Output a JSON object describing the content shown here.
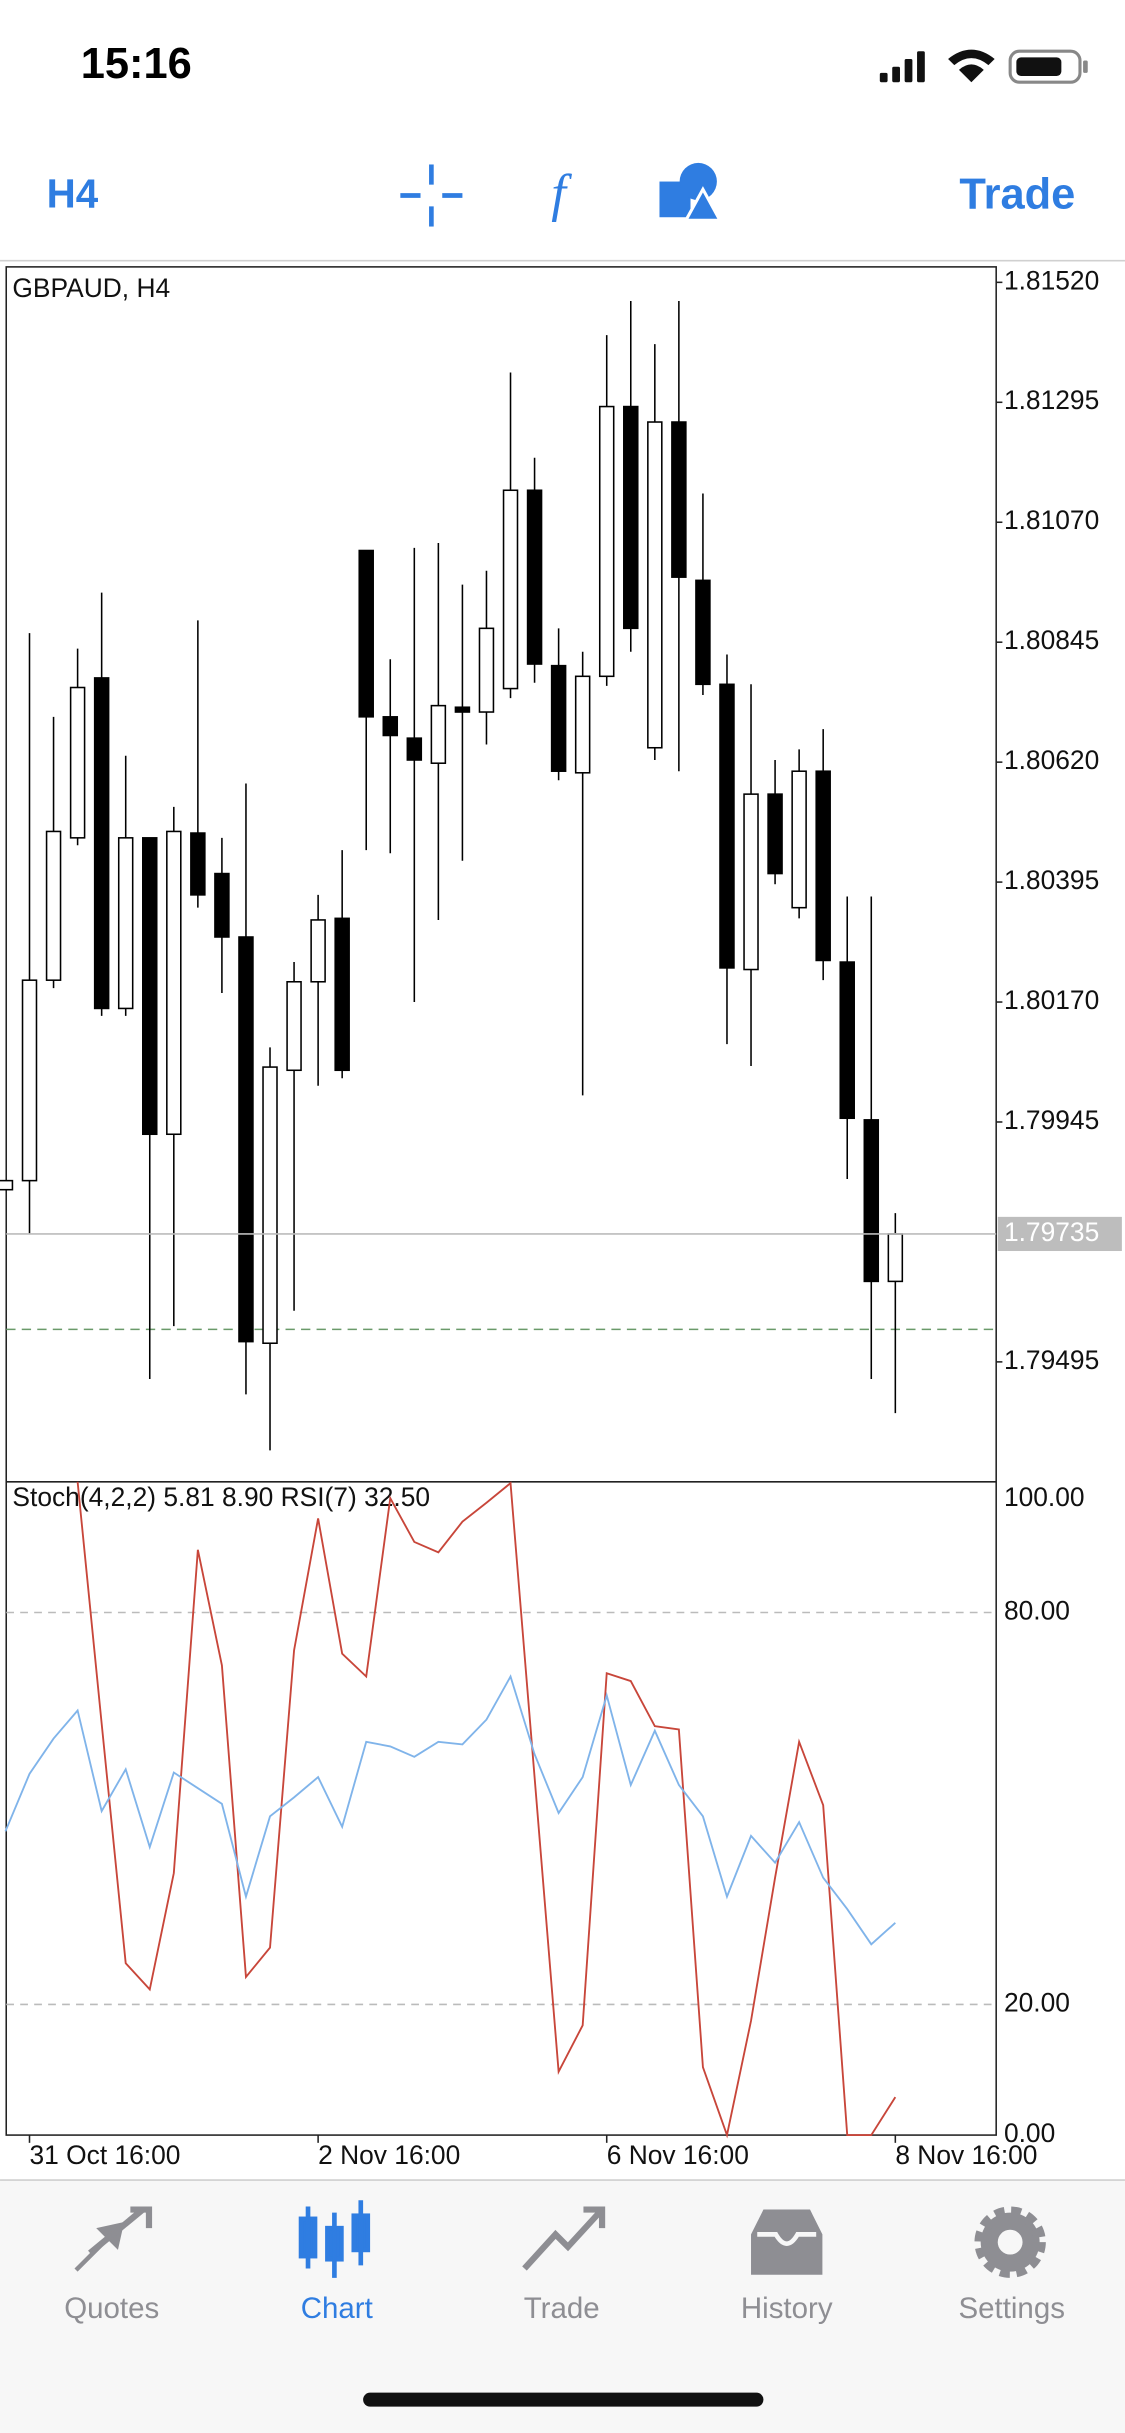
{
  "status_bar": {
    "time": "15:16"
  },
  "toolbar": {
    "timeframe": "H4",
    "action": "Trade"
  },
  "chart_data": [
    {
      "type": "candlestick",
      "title": "GBPAUD, H4",
      "categories": [
        null,
        "31 Oct 16:00",
        null,
        null,
        null,
        null,
        null,
        null,
        null,
        null,
        null,
        null,
        null,
        "2 Nov 16:00",
        null,
        null,
        null,
        null,
        null,
        null,
        null,
        null,
        null,
        null,
        null,
        "6 Nov 16:00",
        null,
        null,
        null,
        null,
        null,
        null,
        null,
        null,
        null,
        null,
        null,
        "8 Nov 16:00"
      ],
      "open": [
        1.79818,
        1.79835,
        1.80211,
        1.80478,
        1.80778,
        1.80158,
        1.80478,
        1.79922,
        1.80487,
        1.80411,
        1.80292,
        1.7953,
        1.80042,
        1.80208,
        1.80327,
        1.81017,
        1.80705,
        1.80665,
        1.80618,
        1.80723,
        1.80714,
        1.80758,
        1.8113,
        1.80801,
        1.806,
        1.80781,
        1.81287,
        1.80647,
        1.81258,
        1.80961,
        1.80766,
        1.80231,
        1.8056,
        1.80347,
        1.80603,
        1.80245,
        1.79949,
        1.79646
      ],
      "high": [
        1.79835,
        1.80862,
        1.80705,
        1.80833,
        1.80938,
        1.80632,
        1.80478,
        1.80536,
        1.80886,
        1.80478,
        1.8058,
        1.80085,
        1.80245,
        1.80371,
        1.80455,
        1.81017,
        1.80813,
        1.81022,
        1.81031,
        1.80953,
        1.80979,
        1.81351,
        1.81191,
        1.80871,
        1.80827,
        1.81421,
        1.81485,
        1.81404,
        1.81485,
        1.81124,
        1.80822,
        1.80766,
        1.80624,
        1.80644,
        1.80682,
        1.80368,
        1.80368,
        1.79774
      ],
      "low": [
        1.79818,
        1.79736,
        1.80196,
        1.80464,
        1.80144,
        1.80144,
        1.79463,
        1.79562,
        1.80347,
        1.80187,
        1.79434,
        1.79329,
        1.79591,
        1.80013,
        1.80027,
        1.80455,
        1.80449,
        1.8017,
        1.80324,
        1.80435,
        1.80653,
        1.8074,
        1.80769,
        1.80586,
        1.79995,
        1.80763,
        1.80827,
        1.80624,
        1.80603,
        1.80746,
        1.80091,
        1.8005,
        1.80391,
        1.80327,
        1.80211,
        1.79838,
        1.79463,
        1.79399
      ],
      "close": [
        1.79835,
        1.80211,
        1.8049,
        1.8076,
        1.80158,
        1.80478,
        1.79922,
        1.8049,
        1.80371,
        1.80292,
        1.79533,
        1.80048,
        1.80208,
        1.80324,
        1.80042,
        1.80705,
        1.8067,
        1.80624,
        1.80726,
        1.80714,
        1.80871,
        1.8113,
        1.80804,
        1.80603,
        1.80781,
        1.81287,
        1.80871,
        1.81258,
        1.80967,
        1.80766,
        1.80234,
        1.8056,
        1.80411,
        1.80603,
        1.80248,
        1.79952,
        1.79646,
        1.79735
      ],
      "up_color": "#ffffff",
      "down_color": "#000000",
      "ylim": [
        1.7927,
        1.81549
      ],
      "yticks": [
        {
          "value": 1.8152,
          "label": "1.81520"
        },
        {
          "value": 1.81295,
          "label": "1.81295"
        },
        {
          "value": 1.8107,
          "label": "1.81070"
        },
        {
          "value": 1.80845,
          "label": "1.80845"
        },
        {
          "value": 1.8062,
          "label": "1.80620"
        },
        {
          "value": 1.80395,
          "label": "1.80395"
        },
        {
          "value": 1.8017,
          "label": "1.80170"
        },
        {
          "value": 1.79945,
          "label": "1.79945"
        },
        {
          "value": 1.79495,
          "label": "1.79495"
        }
      ],
      "current_price": {
        "value": 1.79735,
        "label": "1.79735"
      },
      "level_line": 1.79556
    },
    {
      "type": "line",
      "title": "Stoch(4,2,2) 5.81 8.90 RSI(7) 32.50",
      "series": [
        {
          "color": "#c8463a",
          "values": [
            null,
            null,
            null,
            100,
            63,
            26.3,
            22.3,
            40.1,
            89.6,
            71.9,
            24.2,
            28.7,
            74.2,
            94.4,
            73.7,
            70.2,
            97.5,
            90.8,
            89.2,
            93.9,
            96.8,
            99.8,
            54.8,
            9.7,
            16.8,
            70.7,
            69.5,
            62.6,
            62.1,
            10.4,
            0,
            17.5,
            39.4,
            60.2,
            50.5,
            0,
            0,
            5.81
          ]
        },
        {
          "color": "#80b4ea",
          "values": [
            46.5,
            55.3,
            60.7,
            65,
            49.6,
            56,
            44.1,
            55.5,
            53.1,
            50.7,
            36.5,
            48.8,
            51.7,
            54.8,
            47.2,
            60.2,
            59.5,
            57.9,
            60.2,
            59.8,
            63.6,
            70.2,
            58.3,
            49.3,
            54.8,
            67.3,
            53.6,
            61.9,
            53.6,
            48.8,
            36.5,
            45.8,
            41.7,
            47.9,
            39.4,
            34.6,
            29.2,
            32.5
          ]
        }
      ],
      "ylim": [
        0,
        100
      ],
      "yticks": [
        {
          "value": 100,
          "label": "100.00"
        },
        {
          "value": 80,
          "label": "80.00"
        },
        {
          "value": 20,
          "label": "20.00"
        },
        {
          "value": 0,
          "label": "0.00"
        }
      ]
    }
  ],
  "tabs": [
    "Quotes",
    "Chart",
    "Trade",
    "History",
    "Settings"
  ],
  "active_tab": 1
}
